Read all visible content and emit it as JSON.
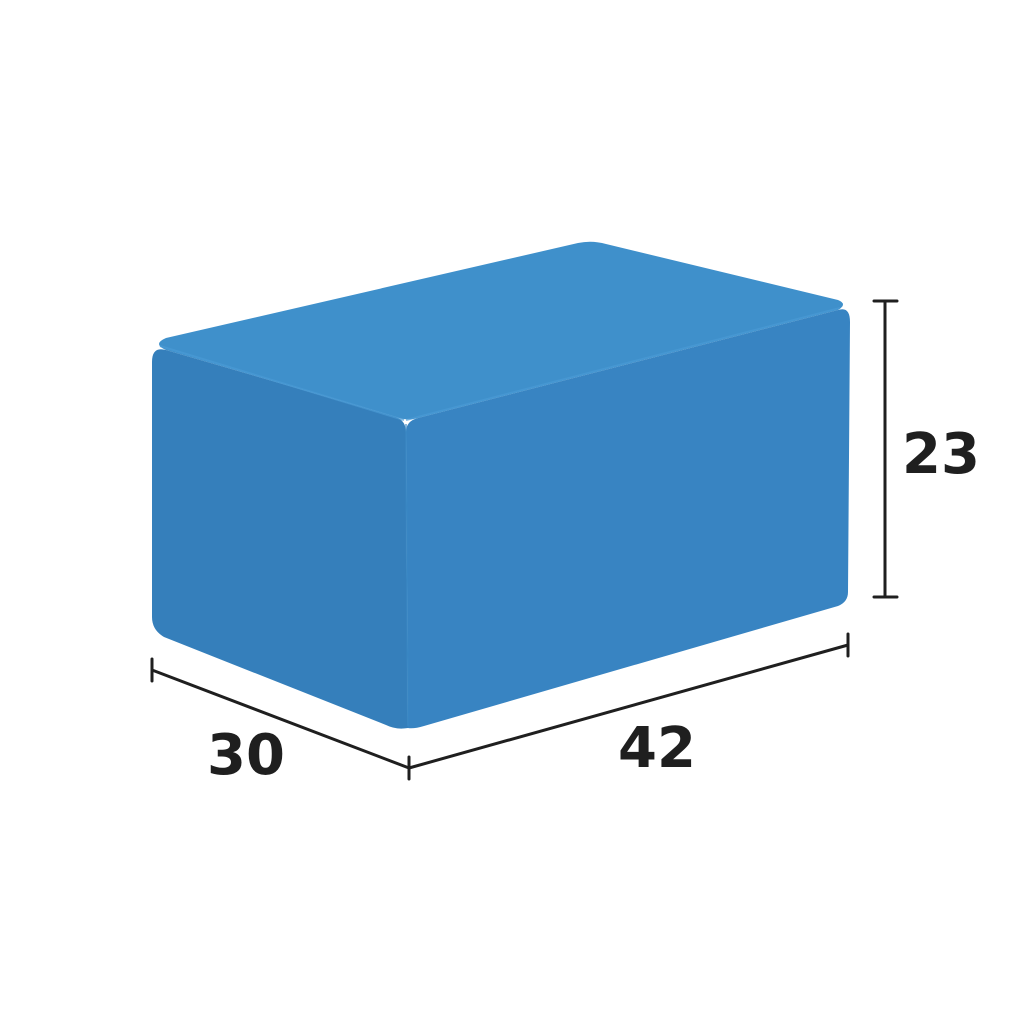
{
  "diagram": {
    "kind": "rectangular-prism",
    "colors": {
      "top_face": "#3f90cb",
      "front_face": "#3884c2",
      "left_face": "#357fbb",
      "edge_highlight": "#4a9ad4",
      "background": "#ffffff",
      "dimension_ink": "#1f1f1f"
    },
    "dimensions": {
      "depth_label": "30",
      "width_label": "42",
      "height_label": "23"
    }
  }
}
